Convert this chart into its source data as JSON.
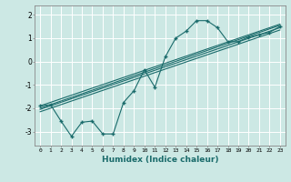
{
  "xlabel": "Humidex (Indice chaleur)",
  "bg_color": "#cce8e4",
  "line_color": "#1a6b6b",
  "grid_color": "#ffffff",
  "xlim": [
    -0.5,
    23.5
  ],
  "ylim": [
    -3.6,
    2.4
  ],
  "x_data": [
    0,
    1,
    2,
    3,
    4,
    5,
    6,
    7,
    8,
    9,
    10,
    11,
    12,
    13,
    14,
    15,
    16,
    17,
    18,
    19,
    20,
    21,
    22,
    23
  ],
  "y_data": [
    -1.9,
    -1.85,
    -2.55,
    -3.2,
    -2.6,
    -2.55,
    -3.1,
    -3.1,
    -1.75,
    -1.25,
    -0.35,
    -1.1,
    0.2,
    1.0,
    1.3,
    1.75,
    1.75,
    1.45,
    0.85,
    0.85,
    1.05,
    1.15,
    1.25,
    1.5
  ],
  "reg_lines": [
    {
      "x": [
        0,
        23
      ],
      "y": [
        -1.9,
        1.6
      ]
    },
    {
      "x": [
        0,
        23
      ],
      "y": [
        -2.05,
        1.45
      ]
    },
    {
      "x": [
        0,
        23
      ],
      "y": [
        -2.15,
        1.35
      ]
    },
    {
      "x": [
        0,
        23
      ],
      "y": [
        -2.0,
        1.55
      ]
    }
  ],
  "xticks": [
    0,
    1,
    2,
    3,
    4,
    5,
    6,
    7,
    8,
    9,
    10,
    11,
    12,
    13,
    14,
    15,
    16,
    17,
    18,
    19,
    20,
    21,
    22,
    23
  ],
  "yticks": [
    -3,
    -2,
    -1,
    0,
    1,
    2
  ]
}
